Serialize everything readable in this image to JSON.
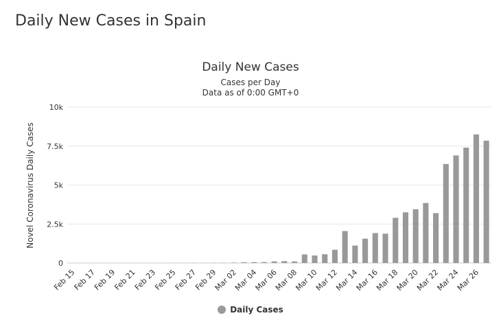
{
  "page": {
    "title": "Daily New Cases in Spain"
  },
  "chart_data": {
    "type": "bar",
    "title": "Daily New Cases",
    "subtitle": "Cases per Day",
    "subtitle2": "Data as of 0:00 GMT+0",
    "ylabel": "Novel Coronavirus Daily Cases",
    "xlabel": "",
    "ylim": [
      0,
      10000
    ],
    "yticks": [
      0,
      2500,
      5000,
      7500,
      10000
    ],
    "ytick_labels": [
      "0",
      "2.5k",
      "5k",
      "7.5k",
      "10k"
    ],
    "categories": [
      "Feb 15",
      "Feb 16",
      "Feb 17",
      "Feb 18",
      "Feb 19",
      "Feb 20",
      "Feb 21",
      "Feb 22",
      "Feb 23",
      "Feb 24",
      "Feb 25",
      "Feb 26",
      "Feb 27",
      "Feb 28",
      "Feb 29",
      "Mar 01",
      "Mar 02",
      "Mar 03",
      "Mar 04",
      "Mar 05",
      "Mar 06",
      "Mar 07",
      "Mar 08",
      "Mar 09",
      "Mar 10",
      "Mar 11",
      "Mar 12",
      "Mar 13",
      "Mar 14",
      "Mar 15",
      "Mar 16",
      "Mar 17",
      "Mar 18",
      "Mar 19",
      "Mar 20",
      "Mar 21",
      "Mar 22",
      "Mar 23",
      "Mar 24",
      "Mar 25",
      "Mar 26",
      "Mar 27"
    ],
    "xtick_labels": [
      "Feb 15",
      "Feb 17",
      "Feb 19",
      "Feb 21",
      "Feb 23",
      "Feb 25",
      "Feb 27",
      "Feb 29",
      "Mar 02",
      "Mar 04",
      "Mar 06",
      "Mar 08",
      "Mar 10",
      "Mar 12",
      "Mar 14",
      "Mar 16",
      "Mar 18",
      "Mar 20",
      "Mar 22",
      "Mar 24",
      "Mar 26"
    ],
    "series": [
      {
        "name": "Daily Cases",
        "color": "#999999",
        "values": [
          0,
          0,
          0,
          0,
          0,
          0,
          0,
          0,
          0,
          0,
          4,
          4,
          10,
          8,
          12,
          17,
          30,
          45,
          57,
          61,
          100,
          120,
          100,
          550,
          480,
          560,
          850,
          2050,
          1120,
          1560,
          1920,
          1880,
          2900,
          3250,
          3450,
          3850,
          3200,
          6350,
          6900,
          7400,
          8250,
          7850
        ]
      }
    ],
    "legend": "bottom-center"
  }
}
